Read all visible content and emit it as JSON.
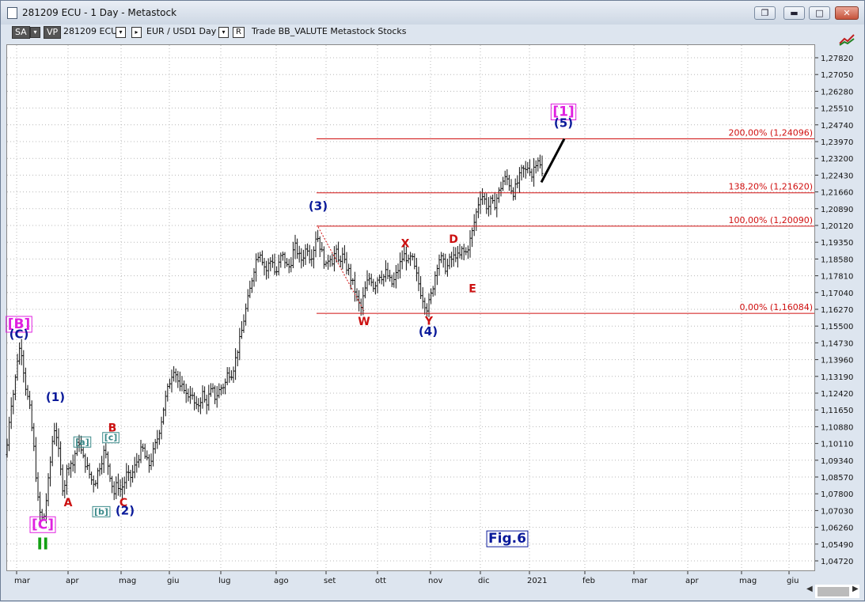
{
  "window": {
    "title": "281209 ECU - 1 Day - Metastock",
    "buttons": {
      "restore": "❐",
      "minimize": "▬",
      "maximize": "□",
      "close": "✕"
    }
  },
  "toolbar": {
    "sa": "SA",
    "vp": "VP",
    "symbol": "281209 ECU",
    "pair": "EUR / USD",
    "period": "1 Day",
    "r": "R",
    "items": "Trade  BB_VALUTE  Metastock  Stocks",
    "dropdown_icon": "chevron-down-icon"
  },
  "colors": {
    "price": "#111111",
    "fib": "#d01010",
    "wave_blue": "#0a1a9a",
    "wave_red": "#cc1111",
    "wave_magenta": "#e020e0",
    "wave_teal": "#3a8a8a",
    "wave_green": "#12a012",
    "grid": "#b8b8b8"
  },
  "chart_data": {
    "type": "ohlc",
    "symbol": "281209 ECU",
    "x_labels": [
      "mar",
      "apr",
      "mag",
      "giu",
      "lug",
      "ago",
      "set",
      "ott",
      "nov",
      "dic",
      "2021",
      "feb",
      "mar",
      "apr",
      "mag",
      "giu"
    ],
    "y_ticks": [
      1.2782,
      1.2705,
      1.2628,
      1.2551,
      1.2474,
      1.2397,
      1.232,
      1.2243,
      1.2166,
      1.2089,
      1.2012,
      1.1935,
      1.1858,
      1.1781,
      1.1704,
      1.1627,
      1.155,
      1.1473,
      1.1396,
      1.1319,
      1.1242,
      1.1165,
      1.1088,
      1.1011,
      1.0934,
      1.0857,
      1.078,
      1.0703,
      1.0626,
      1.0549,
      1.0472
    ],
    "y_tick_labels": [
      "1,27820",
      "1,27050",
      "1,26280",
      "1,25510",
      "1,24740",
      "1,23970",
      "1,23200",
      "1,22430",
      "1,21660",
      "1,20890",
      "1,20120",
      "1,19350",
      "1,18580",
      "1,17810",
      "1,17040",
      "1,16270",
      "1,15500",
      "1,14730",
      "1,13960",
      "1,13190",
      "1,12420",
      "1,11650",
      "1,10880",
      "1,10110",
      "1,09340",
      "1,08570",
      "1,07800",
      "1,07030",
      "1,06260",
      "1,05490",
      "1,04720"
    ],
    "ylim": [
      1.0435,
      1.2835
    ],
    "xlim": [
      0,
      1022
    ],
    "grid": true,
    "close_path": [
      [
        0,
        1.096
      ],
      [
        5,
        1.118
      ],
      [
        10,
        1.126
      ],
      [
        14,
        1.14
      ],
      [
        18,
        1.147
      ],
      [
        24,
        1.128
      ],
      [
        30,
        1.116
      ],
      [
        35,
        1.098
      ],
      [
        40,
        1.075
      ],
      [
        44,
        1.066
      ],
      [
        48,
        1.068
      ],
      [
        52,
        1.08
      ],
      [
        56,
        1.094
      ],
      [
        60,
        1.109
      ],
      [
        64,
        1.104
      ],
      [
        68,
        1.09
      ],
      [
        72,
        1.079
      ],
      [
        76,
        1.088
      ],
      [
        80,
        1.093
      ],
      [
        84,
        1.091
      ],
      [
        88,
        1.099
      ],
      [
        92,
        1.102
      ],
      [
        96,
        1.095
      ],
      [
        100,
        1.092
      ],
      [
        104,
        1.088
      ],
      [
        108,
        1.084
      ],
      [
        112,
        1.083
      ],
      [
        116,
        1.089
      ],
      [
        120,
        1.093
      ],
      [
        124,
        1.098
      ],
      [
        128,
        1.092
      ],
      [
        132,
        1.085
      ],
      [
        136,
        1.078
      ],
      [
        140,
        1.083
      ],
      [
        144,
        1.08
      ],
      [
        148,
        1.082
      ],
      [
        152,
        1.087
      ],
      [
        156,
        1.085
      ],
      [
        160,
        1.088
      ],
      [
        164,
        1.092
      ],
      [
        168,
        1.096
      ],
      [
        172,
        1.099
      ],
      [
        176,
        1.094
      ],
      [
        180,
        1.091
      ],
      [
        184,
        1.095
      ],
      [
        188,
        1.1
      ],
      [
        192,
        1.105
      ],
      [
        196,
        1.112
      ],
      [
        200,
        1.12
      ],
      [
        204,
        1.126
      ],
      [
        208,
        1.132
      ],
      [
        212,
        1.136
      ],
      [
        216,
        1.131
      ],
      [
        220,
        1.125
      ],
      [
        224,
        1.128
      ],
      [
        228,
        1.122
      ],
      [
        232,
        1.125
      ],
      [
        236,
        1.121
      ],
      [
        240,
        1.117
      ],
      [
        244,
        1.12
      ],
      [
        248,
        1.124
      ],
      [
        252,
        1.119
      ],
      [
        256,
        1.123
      ],
      [
        260,
        1.126
      ],
      [
        264,
        1.122
      ],
      [
        268,
        1.125
      ],
      [
        272,
        1.127
      ],
      [
        276,
        1.128
      ],
      [
        280,
        1.134
      ],
      [
        284,
        1.133
      ],
      [
        288,
        1.137
      ],
      [
        292,
        1.144
      ],
      [
        296,
        1.15
      ],
      [
        300,
        1.158
      ],
      [
        304,
        1.165
      ],
      [
        308,
        1.172
      ],
      [
        312,
        1.18
      ],
      [
        316,
        1.186
      ],
      [
        320,
        1.19
      ],
      [
        324,
        1.185
      ],
      [
        328,
        1.18
      ],
      [
        332,
        1.184
      ],
      [
        336,
        1.186
      ],
      [
        340,
        1.178
      ],
      [
        344,
        1.183
      ],
      [
        348,
        1.188
      ],
      [
        352,
        1.185
      ],
      [
        356,
        1.181
      ],
      [
        360,
        1.185
      ],
      [
        364,
        1.192
      ],
      [
        368,
        1.189
      ],
      [
        372,
        1.185
      ],
      [
        376,
        1.188
      ],
      [
        380,
        1.192
      ],
      [
        384,
        1.186
      ],
      [
        388,
        1.19
      ],
      [
        392,
        1.198
      ],
      [
        396,
        1.192
      ],
      [
        400,
        1.187
      ],
      [
        404,
        1.182
      ],
      [
        408,
        1.188
      ],
      [
        412,
        1.185
      ],
      [
        416,
        1.19
      ],
      [
        420,
        1.184
      ],
      [
        424,
        1.188
      ],
      [
        428,
        1.183
      ],
      [
        432,
        1.181
      ],
      [
        436,
        1.176
      ],
      [
        440,
        1.172
      ],
      [
        444,
        1.166
      ],
      [
        448,
        1.163
      ],
      [
        452,
        1.17
      ],
      [
        456,
        1.175
      ],
      [
        460,
        1.178
      ],
      [
        464,
        1.173
      ],
      [
        468,
        1.176
      ],
      [
        472,
        1.179
      ],
      [
        476,
        1.177
      ],
      [
        480,
        1.18
      ],
      [
        484,
        1.176
      ],
      [
        488,
        1.174
      ],
      [
        492,
        1.178
      ],
      [
        496,
        1.182
      ],
      [
        500,
        1.186
      ],
      [
        504,
        1.188
      ],
      [
        508,
        1.184
      ],
      [
        512,
        1.187
      ],
      [
        516,
        1.181
      ],
      [
        520,
        1.176
      ],
      [
        524,
        1.17
      ],
      [
        528,
        1.166
      ],
      [
        532,
        1.163
      ],
      [
        536,
        1.168
      ],
      [
        540,
        1.175
      ],
      [
        544,
        1.183
      ],
      [
        548,
        1.187
      ],
      [
        552,
        1.184
      ],
      [
        556,
        1.181
      ],
      [
        560,
        1.185
      ],
      [
        564,
        1.186
      ],
      [
        568,
        1.188
      ],
      [
        572,
        1.186
      ],
      [
        576,
        1.19
      ],
      [
        580,
        1.188
      ],
      [
        584,
        1.192
      ],
      [
        588,
        1.197
      ],
      [
        592,
        1.204
      ],
      [
        596,
        1.211
      ],
      [
        600,
        1.216
      ],
      [
        604,
        1.213
      ],
      [
        608,
        1.209
      ],
      [
        612,
        1.212
      ],
      [
        616,
        1.21
      ],
      [
        620,
        1.214
      ],
      [
        624,
        1.218
      ],
      [
        628,
        1.222
      ],
      [
        632,
        1.223
      ],
      [
        636,
        1.22
      ],
      [
        640,
        1.216
      ],
      [
        644,
        1.219
      ],
      [
        648,
        1.223
      ],
      [
        652,
        1.227
      ],
      [
        656,
        1.226
      ],
      [
        660,
        1.229
      ],
      [
        664,
        1.224
      ],
      [
        668,
        1.23
      ],
      [
        672,
        1.232
      ],
      [
        676,
        1.226
      ],
      [
        680,
        1.22
      ]
    ],
    "fib_levels": [
      {
        "label": "200,00% (1,24096)",
        "value": 1.24096
      },
      {
        "label": "138,20% (1,21620)",
        "value": 1.2162
      },
      {
        "label": "100,00% (1,20090)",
        "value": 1.2009
      },
      {
        "label": "0,00% (1,16084)",
        "value": 1.16084
      }
    ],
    "fib_x_start": 392,
    "projection_line": [
      [
        676,
        1.221
      ],
      [
        705,
        1.241
      ]
    ],
    "dotted_line": [
      [
        394,
        1.2005
      ],
      [
        452,
        1.162
      ]
    ],
    "wave_labels": [
      {
        "text": "[B]",
        "x": 16,
        "y": 1.154,
        "color": "wave_magenta",
        "boxed": true,
        "size": 17
      },
      {
        "text": "(C)",
        "x": 16,
        "y": 1.1495,
        "color": "wave_blue",
        "size": 15
      },
      {
        "text": "(1)",
        "x": 62,
        "y": 1.1205,
        "color": "wave_blue",
        "size": 15
      },
      {
        "text": "[a]",
        "x": 96,
        "y": 1.1005,
        "color": "wave_teal",
        "boxed": true,
        "size": 11
      },
      {
        "text": "[c]",
        "x": 132,
        "y": 1.1025,
        "color": "wave_teal",
        "boxed": true,
        "size": 11
      },
      {
        "text": "B",
        "x": 134,
        "y": 1.1065,
        "color": "wave_red",
        "size": 14
      },
      {
        "text": "A",
        "x": 78,
        "y": 1.0723,
        "color": "wave_red",
        "size": 14
      },
      {
        "text": "[b]",
        "x": 120,
        "y": 1.0685,
        "color": "wave_teal",
        "boxed": true,
        "size": 11
      },
      {
        "text": "C",
        "x": 148,
        "y": 1.0723,
        "color": "wave_red",
        "size": 14
      },
      {
        "text": "(2)",
        "x": 150,
        "y": 1.0685,
        "color": "wave_blue",
        "size": 15
      },
      {
        "text": "[C]",
        "x": 46,
        "y": 1.062,
        "color": "wave_magenta",
        "boxed": true,
        "size": 17
      },
      {
        "text": "II",
        "x": 46,
        "y": 1.0525,
        "color": "wave_green",
        "size": 20
      },
      {
        "text": "(3)",
        "x": 394,
        "y": 1.2082,
        "color": "wave_blue",
        "size": 15
      },
      {
        "text": "W",
        "x": 452,
        "y": 1.1555,
        "color": "wave_red",
        "size": 14
      },
      {
        "text": "X",
        "x": 504,
        "y": 1.1912,
        "color": "wave_red",
        "size": 14
      },
      {
        "text": "Y",
        "x": 534,
        "y": 1.1557,
        "color": "wave_red",
        "size": 14
      },
      {
        "text": "(4)",
        "x": 533,
        "y": 1.1508,
        "color": "wave_blue",
        "size": 15
      },
      {
        "text": "D",
        "x": 565,
        "y": 1.1932,
        "color": "wave_red",
        "size": 14
      },
      {
        "text": "E",
        "x": 589,
        "y": 1.1705,
        "color": "wave_red",
        "size": 14
      },
      {
        "text": "[1]",
        "x": 704,
        "y": 1.2515,
        "color": "wave_magenta",
        "boxed": true,
        "size": 17
      },
      {
        "text": "(5)",
        "x": 704,
        "y": 1.2465,
        "color": "wave_blue",
        "size": 15
      },
      {
        "text": "Fig.6",
        "x": 633,
        "y": 1.0555,
        "color": "wave_blue",
        "boxed": true,
        "size": 17
      }
    ]
  }
}
